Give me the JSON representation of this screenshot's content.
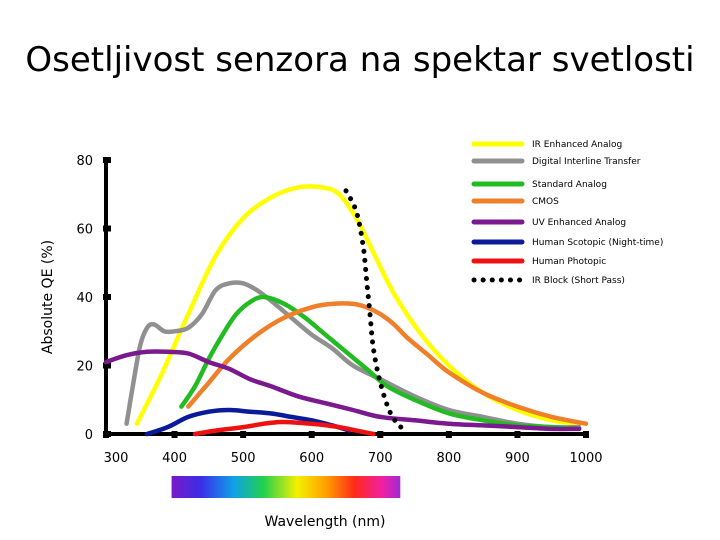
{
  "title": "Osetljivost senzora na spektar svetlosti",
  "chart_data": {
    "type": "line",
    "title": "Osetljivost senzora na spektar svetlosti",
    "xlabel": "Wavelength (nm)",
    "ylabel": "Absolute QE (%)",
    "xlim": [
      300,
      1000
    ],
    "ylim": [
      0,
      80
    ],
    "xticks": [
      300,
      400,
      500,
      600,
      700,
      800,
      900,
      1000
    ],
    "yticks": [
      0,
      20,
      40,
      60,
      80
    ],
    "legend_position": "top-right",
    "series": [
      {
        "name": "IR Enhanced Analog",
        "color": "#ffff00",
        "style": "solid",
        "x": [
          345,
          380,
          420,
          460,
          500,
          540,
          580,
          615,
          640,
          665,
          690,
          720,
          760,
          800,
          850,
          900,
          950,
          990
        ],
        "y": [
          3,
          17,
          35,
          52,
          63,
          69,
          72,
          72,
          70,
          63,
          53,
          41,
          29,
          20,
          12,
          7,
          4,
          3
        ]
      },
      {
        "name": "Digital Interline Transfer",
        "color": "#909090",
        "style": "solid",
        "x": [
          330,
          340,
          350,
          360,
          370,
          385,
          400,
          420,
          440,
          460,
          480,
          500,
          520,
          540,
          570,
          600,
          630,
          660,
          700,
          750,
          800,
          850,
          900,
          950,
          990
        ],
        "y": [
          3,
          15,
          26,
          31,
          32,
          30,
          30,
          31,
          35,
          42,
          44,
          44,
          42,
          39,
          34,
          29,
          25,
          20,
          16,
          11,
          7,
          5,
          3,
          2,
          2
        ]
      },
      {
        "name": "Standard Analog",
        "color": "#22bb22",
        "style": "solid",
        "x": [
          410,
          430,
          450,
          470,
          490,
          510,
          530,
          560,
          590,
          620,
          650,
          680,
          710,
          750,
          800,
          850,
          900,
          950,
          990
        ],
        "y": [
          8,
          14,
          22,
          29,
          35,
          38.5,
          40,
          38,
          34,
          29,
          24,
          19,
          14,
          10,
          6,
          4,
          2.5,
          2,
          1.5
        ]
      },
      {
        "name": "CMOS",
        "color": "#f07f2a",
        "style": "solid",
        "x": [
          420,
          450,
          480,
          520,
          560,
          600,
          630,
          660,
          680,
          700,
          720,
          740,
          770,
          800,
          850,
          900,
          950,
          1000
        ],
        "y": [
          8,
          15,
          22,
          29,
          34,
          37,
          38,
          38,
          37,
          35,
          32,
          28,
          23,
          18,
          12,
          8,
          5,
          3
        ]
      },
      {
        "name": "UV Enhanced Analog",
        "color": "#7a1a8e",
        "style": "solid",
        "x": [
          300,
          330,
          360,
          390,
          420,
          450,
          480,
          510,
          540,
          580,
          620,
          660,
          700,
          750,
          800,
          850,
          900,
          950,
          990
        ],
        "y": [
          21,
          23,
          24,
          24,
          23.5,
          21,
          19,
          16,
          14,
          11,
          9,
          7,
          5,
          4,
          3,
          2.5,
          2,
          1.5,
          1.5
        ]
      },
      {
        "name": "Human Scotopic (Night-time)",
        "color": "#0a1a99",
        "style": "solid",
        "x": [
          360,
          390,
          420,
          450,
          480,
          510,
          540,
          570,
          600,
          630,
          655
        ],
        "y": [
          0,
          2,
          5,
          6.5,
          7,
          6.5,
          6,
          5,
          4,
          2.5,
          1
        ]
      },
      {
        "name": "Human Photopic",
        "color": "#ee1111",
        "style": "solid",
        "x": [
          430,
          460,
          500,
          530,
          555,
          580,
          610,
          640,
          665,
          690
        ],
        "y": [
          0,
          1,
          2,
          3,
          3.5,
          3.3,
          2.8,
          2,
          1,
          0
        ]
      },
      {
        "name": "IR Block (Short Pass)",
        "color": "#000000",
        "style": "dotted",
        "x": [
          650,
          665,
          675,
          680,
          685,
          690,
          700,
          715,
          730
        ],
        "y": [
          71,
          65,
          55,
          45,
          35,
          25,
          15,
          6,
          2
        ]
      }
    ],
    "spectrum_bar": {
      "x_range": [
        400,
        700
      ]
    }
  }
}
